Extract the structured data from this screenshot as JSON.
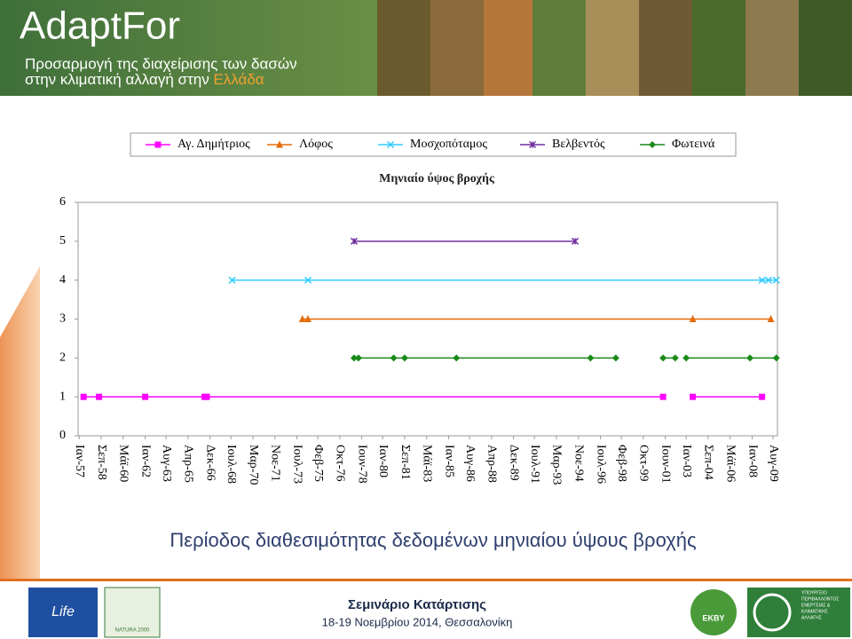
{
  "header": {
    "title": "AdaptFor",
    "subtitle_line1": "Προσαρμογή της διαχείρισης των δασών",
    "subtitle_line2": "στην κλιματική αλλαγή στην",
    "subtitle_highlight": "Ελλάδα"
  },
  "chart_data": {
    "type": "line",
    "title": "Μηνιαίο ύψος βροχής",
    "caption": "Περίοδος διαθεσιμότητας δεδομένων μηνιαίου ύψους βροχής",
    "xlim": [
      "1956-12",
      "2009-12"
    ],
    "xticks": [
      {
        "value": "1957-01",
        "label": "Ιαν-57"
      },
      {
        "value": "1958-09",
        "label": "Σεπ-58"
      },
      {
        "value": "1960-05",
        "label": "Μάϊ-60"
      },
      {
        "value": "1962-01",
        "label": "Ιαν-62"
      },
      {
        "value": "1963-08",
        "label": "Αυγ-63"
      },
      {
        "value": "1965-04",
        "label": "Απρ-65"
      },
      {
        "value": "1966-12",
        "label": "Δεκ-66"
      },
      {
        "value": "1968-07",
        "label": "Ιουλ-68"
      },
      {
        "value": "1970-03",
        "label": "Μαρ-70"
      },
      {
        "value": "1971-11",
        "label": "Νοε-71"
      },
      {
        "value": "1973-07",
        "label": "Ιουλ-73"
      },
      {
        "value": "1975-02",
        "label": "Φεβ-75"
      },
      {
        "value": "1976-10",
        "label": "Οκτ-76"
      },
      {
        "value": "1978-06",
        "label": "Ιουν-78"
      },
      {
        "value": "1980-01",
        "label": "Ιαν-80"
      },
      {
        "value": "1981-09",
        "label": "Σεπ-81"
      },
      {
        "value": "1983-05",
        "label": "Μάϊ-83"
      },
      {
        "value": "1985-01",
        "label": "Ιαν-85"
      },
      {
        "value": "1986-08",
        "label": "Αυγ-86"
      },
      {
        "value": "1988-04",
        "label": "Απρ-88"
      },
      {
        "value": "1989-12",
        "label": "Δεκ-89"
      },
      {
        "value": "1991-07",
        "label": "Ιουλ-91"
      },
      {
        "value": "1993-03",
        "label": "Μαρ-93"
      },
      {
        "value": "1994-11",
        "label": "Νοε-94"
      },
      {
        "value": "1996-07",
        "label": "Ιουλ-96"
      },
      {
        "value": "1998-02",
        "label": "Φεβ-98"
      },
      {
        "value": "1999-10",
        "label": "Οκτ-99"
      },
      {
        "value": "2001-06",
        "label": "Ιουν-01"
      },
      {
        "value": "2003-01",
        "label": "Ιαν-03"
      },
      {
        "value": "2004-09",
        "label": "Σεπ-04"
      },
      {
        "value": "2006-05",
        "label": "Μάϊ-06"
      },
      {
        "value": "2008-01",
        "label": "Ιαν-08"
      },
      {
        "value": "2009-08",
        "label": "Αυγ-09"
      }
    ],
    "ylim": [
      0,
      6
    ],
    "yticks": [
      0,
      1,
      2,
      3,
      4,
      5,
      6
    ],
    "legend": "top",
    "series": [
      {
        "name": "Αγ. Δημήτριος",
        "color": "#ff00ff",
        "marker": "square",
        "x": [
          "1957-05",
          "1958-07",
          "1962-01",
          "1966-07",
          "1966-09",
          "2001-04",
          null,
          "2003-07",
          "2008-10"
        ],
        "values": [
          1,
          1,
          1,
          1,
          1,
          1,
          null,
          1,
          1
        ]
      },
      {
        "name": "Λόφος",
        "color": "#e46c0a",
        "marker": "triangle",
        "x": [
          "1973-12",
          "1974-05",
          "2003-07",
          "2009-06"
        ],
        "values": [
          3,
          3,
          3,
          3
        ]
      },
      {
        "name": "Μοσχοπόταμος",
        "color": "#33ccff",
        "marker": "x",
        "x": [
          "1968-08",
          "1974-05",
          "2008-10",
          "2009-04",
          "2009-11"
        ],
        "values": [
          4,
          4,
          4,
          4,
          4
        ]
      },
      {
        "name": "Βελβεντός",
        "color": "#7030a0",
        "marker": "star",
        "x": [
          "1977-11",
          "1994-08"
        ],
        "values": [
          5,
          5
        ]
      },
      {
        "name": "Φωτεινά",
        "color": "#1a8a1a",
        "marker": "diamond",
        "x": [
          "1977-11",
          "1978-03",
          "1980-11",
          "1981-09",
          "1985-08",
          "1995-10",
          "1997-09",
          null,
          "2001-04",
          "2002-03",
          null,
          "2003-01",
          "2007-11",
          "2009-11"
        ],
        "values": [
          2,
          2,
          2,
          2,
          2,
          2,
          2,
          null,
          2,
          2,
          null,
          2,
          2,
          2
        ]
      }
    ]
  },
  "footer": {
    "title": "Σεμινάριο Κατάρτισης",
    "subtitle": "18-19 Νοεμβρίου 2014, Θεσσαλονίκη",
    "logos": [
      "Life",
      "NATURA 2000",
      "ΕΚΒΥ",
      "ΥΠΟΥΡΓΕΙΟ",
      "ΠΕΡΙΒΑΛΛΟΝΤΟΣ",
      "ΕΝΕΡΓΕΙΑΣ &",
      "ΚΛΙΜΑΤΙΚΗΣ",
      "ΑΛΛΑΓΗΣ"
    ]
  }
}
